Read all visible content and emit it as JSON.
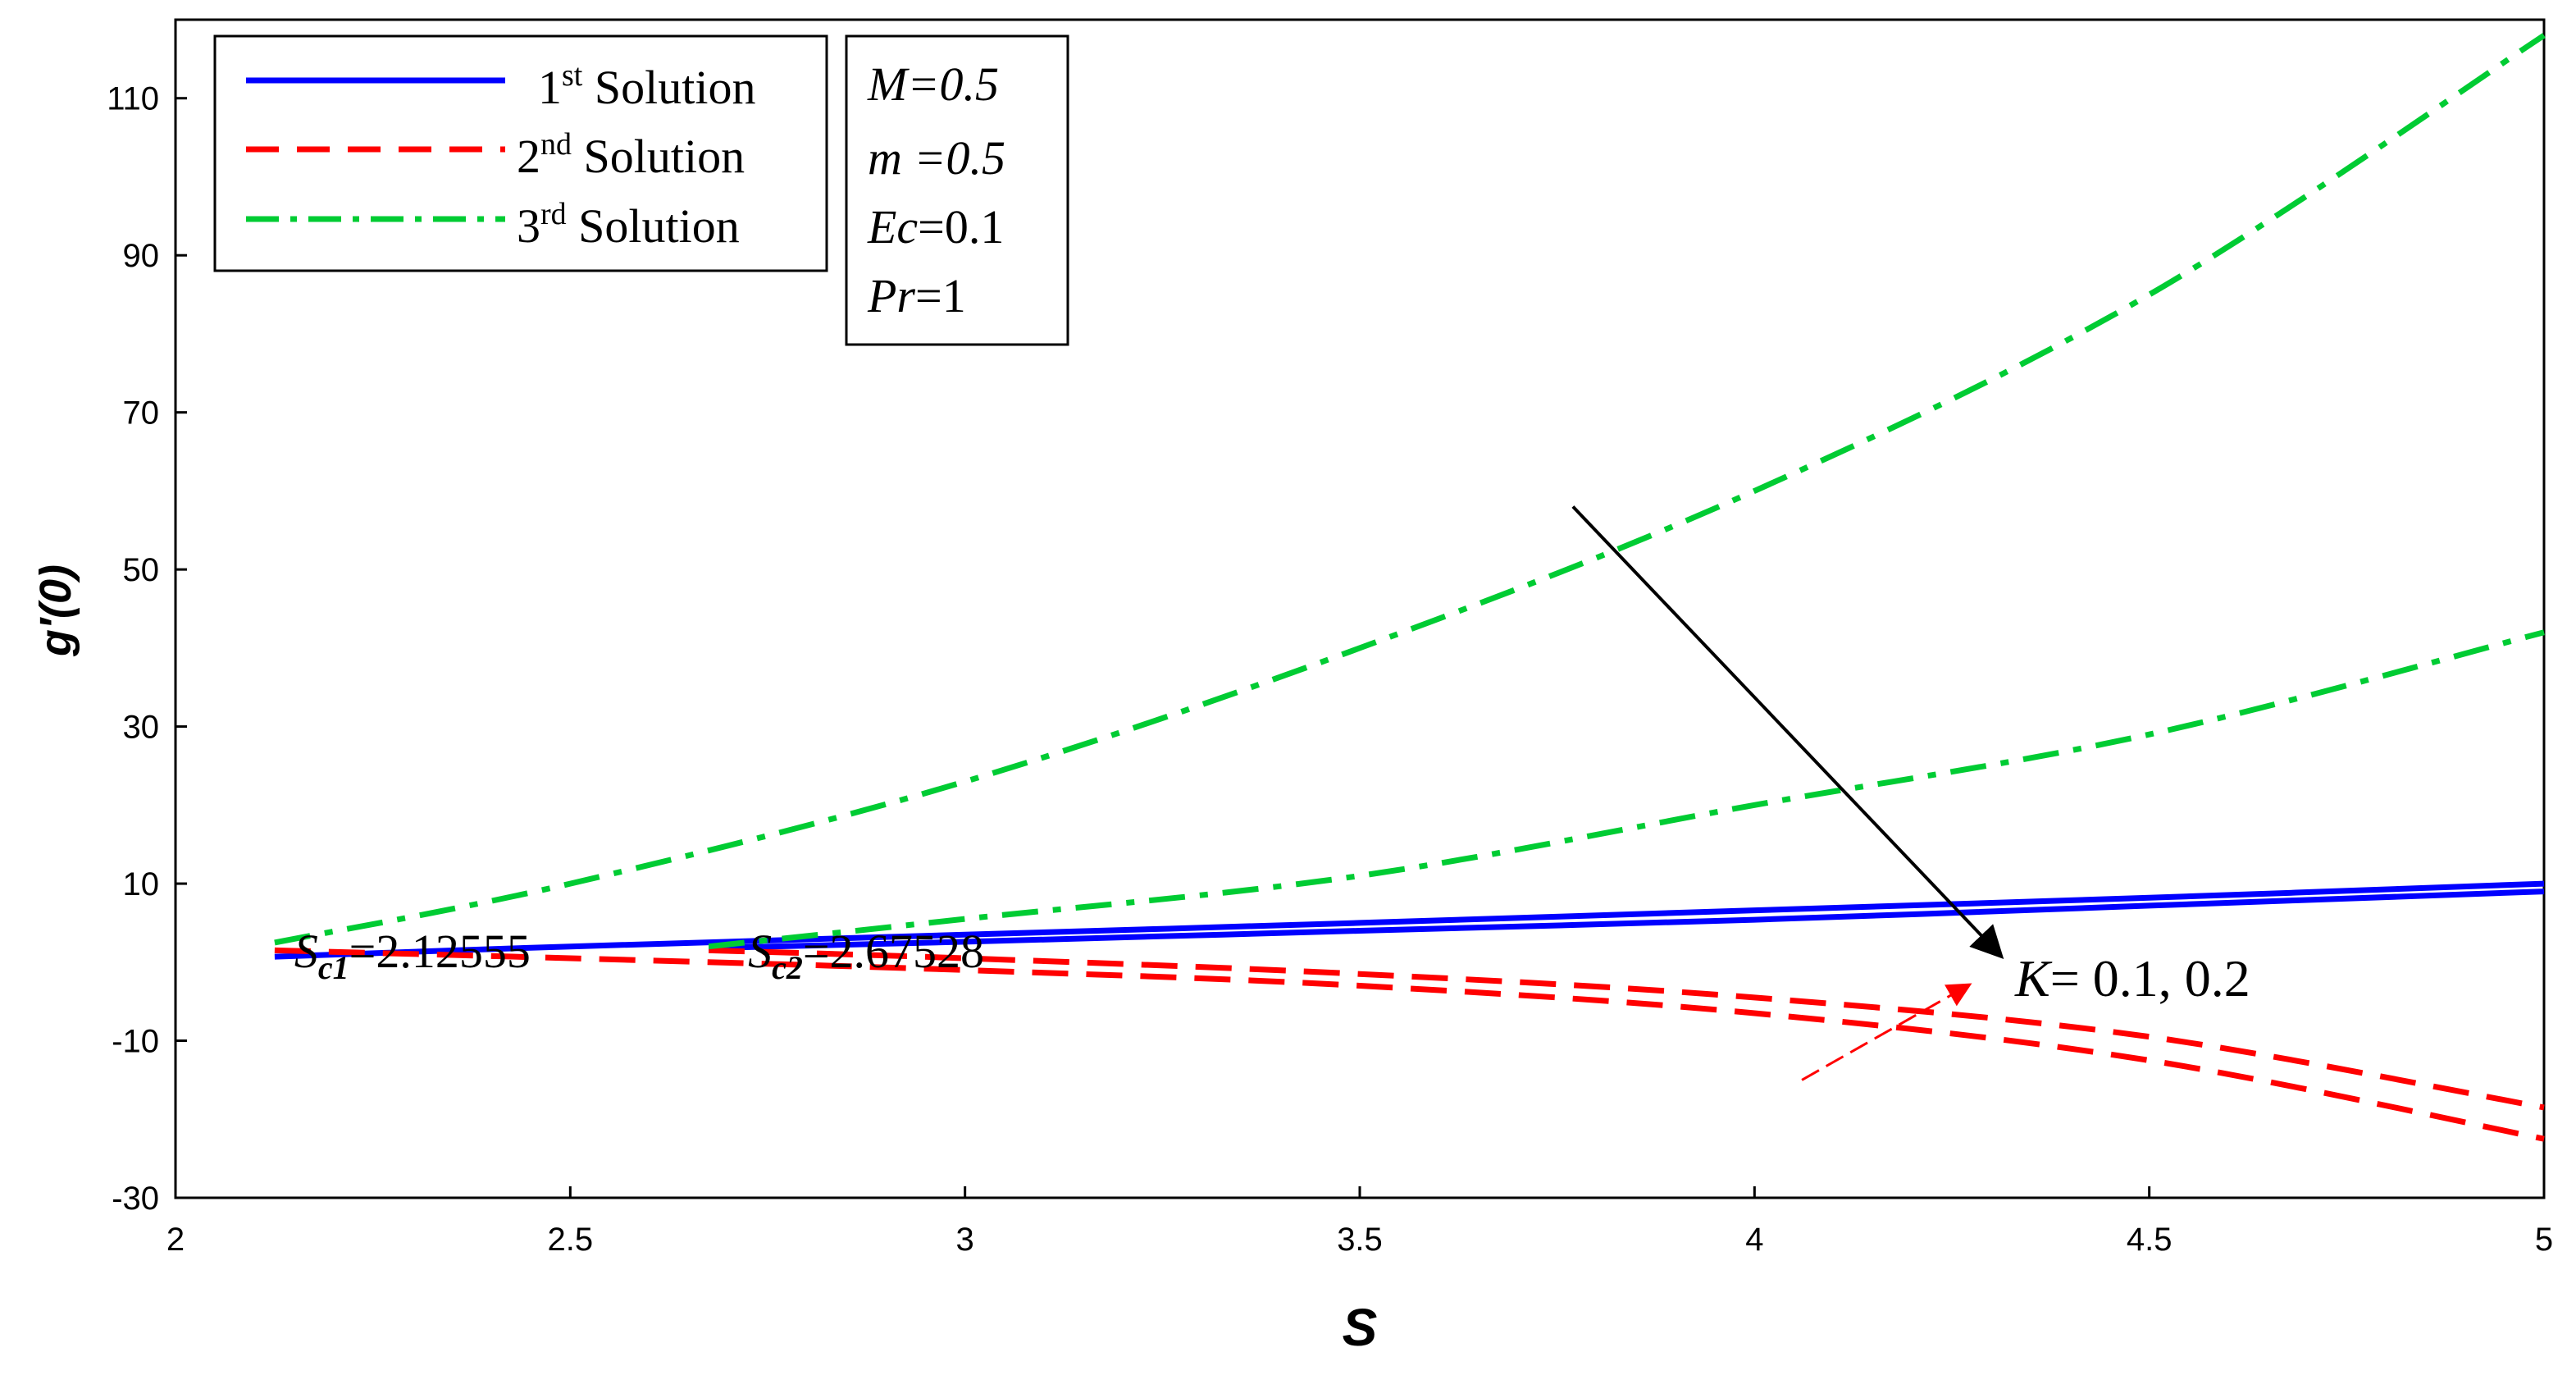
{
  "chart_data": {
    "type": "line",
    "xlabel": "S",
    "ylabel": "g′(0)",
    "xlim": [
      2,
      5
    ],
    "ylim": [
      -30,
      120
    ],
    "xticks": [
      "2",
      "2.5",
      "3",
      "3.5",
      "4",
      "4.5",
      "5"
    ],
    "xtick_values": [
      2,
      2.5,
      3,
      3.5,
      4,
      4.5,
      5
    ],
    "yticks": [
      "-30",
      "-10",
      "10",
      "30",
      "50",
      "70",
      "90",
      "110"
    ],
    "ytick_values": [
      -30,
      -10,
      10,
      30,
      50,
      70,
      90,
      110
    ],
    "grid": false,
    "legend_position": "top-left",
    "legend": [
      {
        "base": "1",
        "sup": "st",
        "text": " Solution",
        "color": "#0000ff",
        "dash": "solid"
      },
      {
        "base": "2",
        "sup": "nd",
        "text": " Solution",
        "color": "#ff0000",
        "dash": "dash"
      },
      {
        "base": "3",
        "sup": "rd",
        "text": " Solution",
        "color": "#00cc33",
        "dash": "dashdot"
      }
    ],
    "params": [
      {
        "italic": "M",
        "rest": "=0.5",
        "rest_italic": true
      },
      {
        "italic": "m",
        "rest": " =0.5",
        "rest_italic": true
      },
      {
        "italic": "Ec",
        "rest": "=0.1",
        "rest_italic": false
      },
      {
        "italic": "Pr",
        "rest": "=1",
        "rest_italic": false
      }
    ],
    "annotations": {
      "sc1": {
        "main": "S",
        "sub": "c1",
        "value": "=2.12555",
        "at": [
          2.12555,
          1
        ]
      },
      "sc2": {
        "main": "S",
        "sub": "c2",
        "value": "=2.67528",
        "at": [
          2.67528,
          1
        ]
      },
      "k_label": {
        "italic": "K",
        "rest": "= 0.1, 0.2",
        "at": [
          4.33,
          -2
        ]
      },
      "arrow_black": {
        "from": [
          3.77,
          58
        ],
        "to": [
          4.31,
          1
        ]
      },
      "arrow_red": {
        "from": [
          4.06,
          -15
        ],
        "to": [
          4.27,
          -3
        ]
      }
    },
    "series": [
      {
        "color": "#0000ff",
        "dash": "solid",
        "x": [
          2.12555,
          2.5,
          3,
          3.5,
          4,
          4.5,
          5
        ],
        "y": [
          0.7,
          2,
          3.5,
          5,
          6.6,
          8.2,
          10
        ]
      },
      {
        "color": "#0000ff",
        "dash": "solid",
        "x": [
          2.67528,
          3,
          3.5,
          4,
          4.5,
          5
        ],
        "y": [
          1.8,
          2.6,
          4,
          5.4,
          7.2,
          9
        ]
      },
      {
        "color": "#ff0000",
        "dash": "dash",
        "x": [
          2.12555,
          2.5,
          3,
          3.5,
          4,
          4.5,
          5
        ],
        "y": [
          1.5,
          0.5,
          -1,
          -3,
          -6.5,
          -12.5,
          -22.5
        ]
      },
      {
        "color": "#ff0000",
        "dash": "dash",
        "x": [
          2.67528,
          3,
          3.5,
          4,
          4.5,
          5
        ],
        "y": [
          1.5,
          0.5,
          -1.5,
          -4.5,
          -9.5,
          -18.5
        ]
      },
      {
        "color": "#00cc33",
        "dash": "dashdot",
        "x": [
          2.12555,
          2.5,
          3,
          3.5,
          4,
          4.5,
          5
        ],
        "y": [
          2.5,
          10,
          23,
          40,
          60,
          85,
          118
        ]
      },
      {
        "color": "#00cc33",
        "dash": "dashdot",
        "x": [
          2.67528,
          3,
          3.5,
          4,
          4.5,
          5
        ],
        "y": [
          2,
          5.5,
          11,
          20,
          29,
          42
        ]
      }
    ]
  }
}
